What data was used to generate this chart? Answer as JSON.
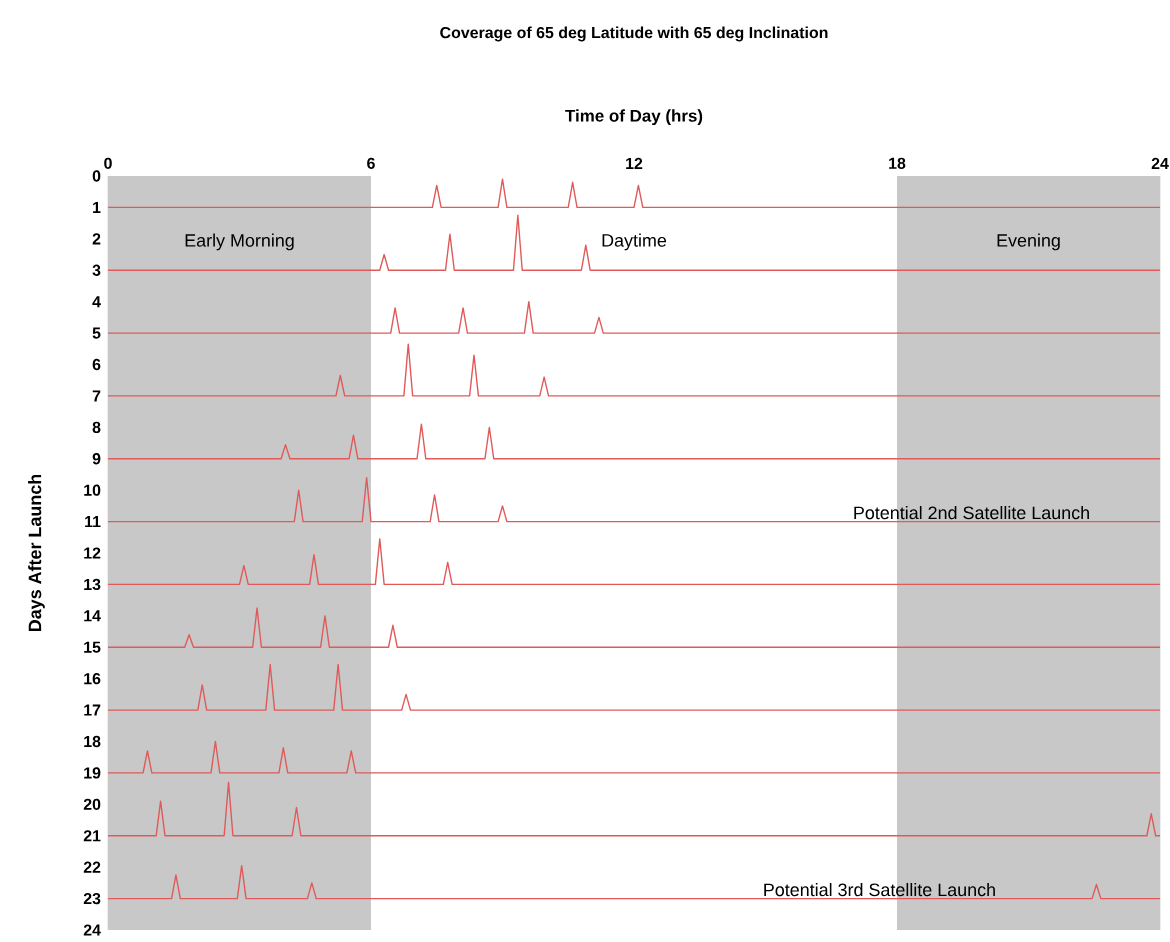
{
  "chart_data": {
    "type": "line",
    "title": "Coverage of 65 deg Latitude with 65 deg Inclination",
    "xlabel": "Time of Day (hrs)",
    "ylabel": "Days After Launch",
    "xlim": [
      0,
      24
    ],
    "xticks": [
      0,
      6,
      12,
      18,
      24
    ],
    "ylim": [
      24,
      0
    ],
    "yticks": [
      0,
      1,
      2,
      3,
      4,
      5,
      6,
      7,
      8,
      9,
      10,
      11,
      12,
      13,
      14,
      15,
      16,
      17,
      18,
      19,
      20,
      21,
      22,
      23,
      24
    ],
    "grid": "x",
    "bands": [
      {
        "axis": "x",
        "from": 0,
        "to": 6,
        "label": "Early Morning",
        "color": "#c8c8c8"
      },
      {
        "axis": "x",
        "from": 6,
        "to": 18,
        "label": "Daytime",
        "color": "#ffffff"
      },
      {
        "axis": "x",
        "from": 18,
        "to": 24,
        "label": "Evening",
        "color": "#c8c8c8"
      }
    ],
    "annotations": [
      {
        "text": "Potential 2nd Satellite Launch",
        "x": 19.7,
        "y": 11
      },
      {
        "text": "Potential 3rd Satellite Launch",
        "x": 17.6,
        "y": 23
      }
    ],
    "series": [
      {
        "color": "#e05a5a",
        "x": [
          0,
          7.4,
          7.5,
          7.6,
          8.9,
          9,
          9.1,
          10.5,
          10.6,
          10.7,
          12,
          12.1,
          12.2,
          24
        ],
        "values": [
          1,
          1,
          0.3,
          1,
          1,
          0.1,
          1,
          1,
          0.2,
          1,
          1,
          0.3,
          1,
          1
        ]
      },
      {
        "color": "#e05a5a",
        "x": [
          0,
          6.2,
          6.3,
          6.4,
          7.7,
          7.8,
          7.9,
          9.25,
          9.35,
          9.45,
          10.8,
          10.9,
          11,
          24
        ],
        "values": [
          3,
          3,
          2.5,
          3,
          3,
          1.85,
          3,
          3,
          1.25,
          3,
          3,
          2.2,
          3,
          3
        ]
      },
      {
        "color": "#e05a5a",
        "x": [
          0,
          6.45,
          6.55,
          6.65,
          8,
          8.1,
          8.2,
          9.5,
          9.6,
          9.7,
          11.1,
          11.2,
          11.3,
          24
        ],
        "values": [
          5,
          5,
          4.2,
          5,
          5,
          4.2,
          5,
          5,
          4,
          5,
          5,
          4.5,
          5,
          5
        ]
      },
      {
        "color": "#e05a5a",
        "x": [
          0,
          5.2,
          5.3,
          5.4,
          6.75,
          6.85,
          6.95,
          8.25,
          8.35,
          8.45,
          9.85,
          9.95,
          10.05,
          24
        ],
        "values": [
          7,
          7,
          6.35,
          7,
          7,
          5.35,
          7,
          7,
          5.7,
          7,
          7,
          6.4,
          7,
          7
        ]
      },
      {
        "color": "#e05a5a",
        "x": [
          0,
          3.95,
          4.05,
          4.15,
          5.5,
          5.6,
          5.7,
          7.05,
          7.15,
          7.25,
          8.6,
          8.7,
          8.8,
          24
        ],
        "values": [
          9,
          9,
          8.55,
          9,
          9,
          8.25,
          9,
          9,
          7.9,
          9,
          9,
          8,
          9,
          9
        ]
      },
      {
        "color": "#e05a5a",
        "x": [
          0,
          4.25,
          4.35,
          4.45,
          5.8,
          5.9,
          6,
          7.35,
          7.45,
          7.55,
          8.9,
          9,
          9.1,
          24
        ],
        "values": [
          11,
          11,
          10,
          11,
          11,
          9.6,
          11,
          11,
          10.15,
          11,
          11,
          10.5,
          11,
          11
        ]
      },
      {
        "color": "#e05a5a",
        "x": [
          0,
          3,
          3.1,
          3.2,
          4.6,
          4.7,
          4.8,
          6.1,
          6.2,
          6.3,
          7.65,
          7.75,
          7.85,
          24
        ],
        "values": [
          13,
          13,
          12.4,
          13,
          13,
          12.05,
          13,
          13,
          11.55,
          13,
          13,
          12.3,
          13,
          13
        ]
      },
      {
        "color": "#e05a5a",
        "x": [
          0,
          1.75,
          1.85,
          1.95,
          3.3,
          3.4,
          3.5,
          4.85,
          4.95,
          5.05,
          6.4,
          6.5,
          6.6,
          24
        ],
        "values": [
          15,
          15,
          14.6,
          15,
          15,
          13.75,
          15,
          15,
          14,
          15,
          15,
          14.3,
          15,
          15
        ]
      },
      {
        "color": "#e05a5a",
        "x": [
          0,
          2.05,
          2.15,
          2.25,
          3.6,
          3.7,
          3.8,
          5.15,
          5.25,
          5.35,
          6.7,
          6.8,
          6.9,
          24
        ],
        "values": [
          17,
          17,
          16.2,
          17,
          17,
          15.55,
          17,
          17,
          15.55,
          17,
          17,
          16.5,
          17,
          17
        ]
      },
      {
        "color": "#e05a5a",
        "x": [
          0,
          0.8,
          0.9,
          1,
          2.35,
          2.45,
          2.55,
          3.9,
          4,
          4.1,
          5.45,
          5.55,
          5.65,
          24
        ],
        "values": [
          19,
          19,
          18.3,
          19,
          19,
          18,
          19,
          19,
          18.2,
          19,
          19,
          18.3,
          19,
          19
        ]
      },
      {
        "color": "#e05a5a",
        "x": [
          0,
          1.1,
          1.2,
          1.3,
          2.65,
          2.75,
          2.85,
          4.2,
          4.3,
          4.4,
          23.7,
          23.8,
          23.9,
          24
        ],
        "values": [
          21,
          21,
          19.9,
          21,
          21,
          19.3,
          21,
          21,
          20.1,
          21,
          21,
          20.3,
          21,
          21
        ]
      },
      {
        "color": "#e05a5a",
        "x": [
          0,
          1.45,
          1.55,
          1.65,
          2.95,
          3.05,
          3.15,
          4.55,
          4.65,
          4.75,
          22.45,
          22.55,
          22.65,
          24
        ],
        "values": [
          23,
          23,
          22.25,
          23,
          23,
          21.95,
          23,
          23,
          22.5,
          23,
          23,
          22.55,
          23,
          23
        ]
      }
    ]
  }
}
